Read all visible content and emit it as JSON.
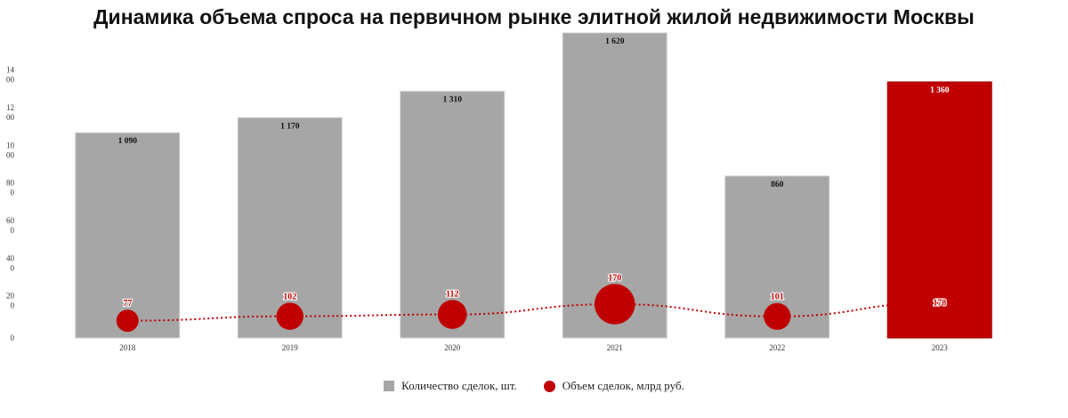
{
  "chart_data": {
    "title": "Динамика объема спроса на первичном рынке элитной жилой недвижимости Москвы",
    "type": "bar",
    "categories": [
      "2018",
      "2019",
      "2020",
      "2021",
      "2022",
      "2023"
    ],
    "ylim": [
      0,
      1620
    ],
    "y_ticks": [
      {
        "value": 0,
        "label": "0"
      },
      {
        "value": 200,
        "label": "20\n0"
      },
      {
        "value": 400,
        "label": "40\n0"
      },
      {
        "value": 600,
        "label": "60\n0"
      },
      {
        "value": 800,
        "label": "80\n0"
      },
      {
        "value": 1000,
        "label": "10\n00"
      },
      {
        "value": 1200,
        "label": "12\n00"
      },
      {
        "value": 1400,
        "label": "14\n00"
      }
    ],
    "series": [
      {
        "name": "Количество сделок, шт.",
        "kind": "bar",
        "values": [
          1090,
          1170,
          1310,
          1620,
          860,
          1360
        ],
        "labels": [
          "1 090",
          "1 170",
          "1 310",
          "1 620",
          "860",
          "1 360"
        ],
        "color": "#a6a6a6",
        "highlight_color": "#c00000",
        "highlight_index": 5
      },
      {
        "name": "Объем сделок, млрд руб.",
        "kind": "bubble-line",
        "values": [
          77,
          102,
          112,
          170,
          101,
          178
        ],
        "labels": [
          "77",
          "102",
          "112",
          "170",
          "101",
          "178"
        ],
        "color": "#c00000"
      }
    ],
    "legend_position": "bottom",
    "grid": false
  },
  "legend": {
    "items": [
      {
        "label": "Количество сделок, шт.",
        "color": "#a6a6a6",
        "shape": "square"
      },
      {
        "label": "Объем сделок, млрд руб.",
        "color": "#c00000",
        "shape": "circle"
      }
    ]
  }
}
